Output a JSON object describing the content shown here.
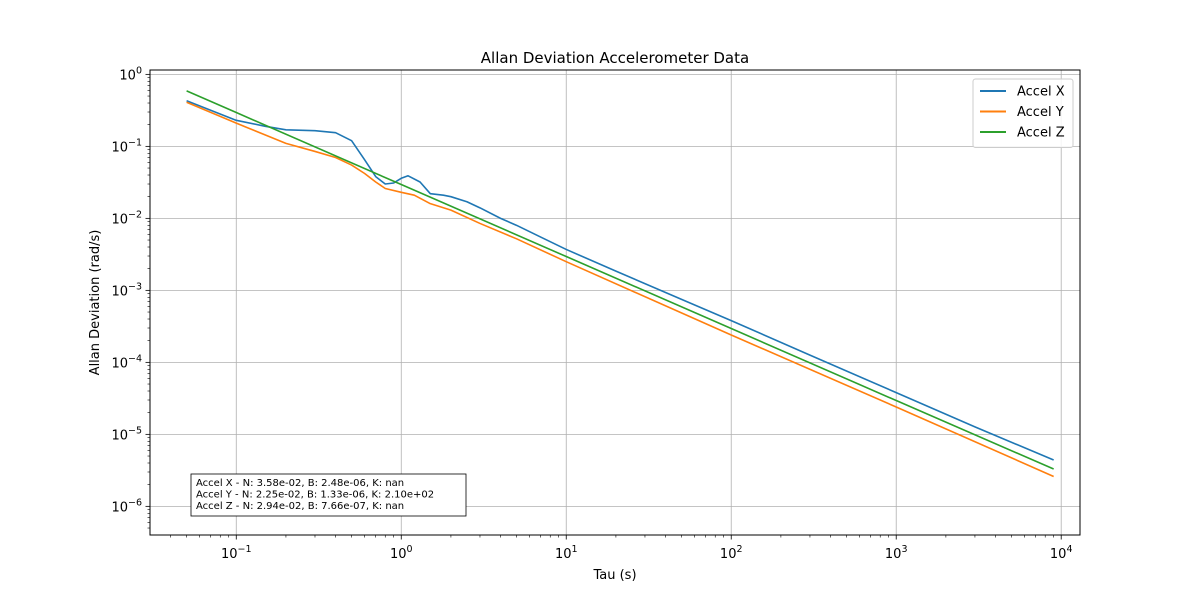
{
  "chart_data": {
    "type": "line",
    "title": "Allan Deviation Accelerometer Data",
    "xlabel": "Tau (s)",
    "ylabel": "Allan Deviation (rad/s)",
    "xscale": "log",
    "yscale": "log",
    "xlim": [
      0.03,
      13000
    ],
    "ylim": [
      4e-07,
      1.15
    ],
    "grid": true,
    "legend_position": "top-right",
    "x_ticks": [
      {
        "value": 0.1,
        "base": "10",
        "exp": "−1"
      },
      {
        "value": 1,
        "base": "10",
        "exp": "0"
      },
      {
        "value": 10,
        "base": "10",
        "exp": "1"
      },
      {
        "value": 100,
        "base": "10",
        "exp": "2"
      },
      {
        "value": 1000,
        "base": "10",
        "exp": "3"
      },
      {
        "value": 10000,
        "base": "10",
        "exp": "4"
      }
    ],
    "y_ticks": [
      {
        "value": 1e-06,
        "base": "10",
        "exp": "−6"
      },
      {
        "value": 1e-05,
        "base": "10",
        "exp": "−5"
      },
      {
        "value": 0.0001,
        "base": "10",
        "exp": "−4"
      },
      {
        "value": 0.001,
        "base": "10",
        "exp": "−3"
      },
      {
        "value": 0.01,
        "base": "10",
        "exp": "−2"
      },
      {
        "value": 0.1,
        "base": "10",
        "exp": "−1"
      },
      {
        "value": 1,
        "base": "10",
        "exp": "0"
      }
    ],
    "series": [
      {
        "name": "Accel X",
        "color": "#1f77b4",
        "x": [
          0.05,
          0.1,
          0.15,
          0.2,
          0.3,
          0.4,
          0.5,
          0.6,
          0.7,
          0.8,
          0.9,
          1.0,
          1.1,
          1.3,
          1.5,
          1.8,
          2.0,
          2.5,
          3.0,
          4.0,
          5.0,
          7.0,
          10,
          20,
          50,
          100,
          300,
          1000,
          3000,
          9000
        ],
        "y": [
          0.43,
          0.23,
          0.19,
          0.17,
          0.165,
          0.155,
          0.12,
          0.065,
          0.038,
          0.03,
          0.031,
          0.036,
          0.039,
          0.032,
          0.022,
          0.021,
          0.02,
          0.017,
          0.014,
          0.01,
          0.008,
          0.0055,
          0.0037,
          0.00185,
          0.00075,
          0.00038,
          0.000126,
          3.8e-05,
          1.27e-05,
          4.4e-06
        ]
      },
      {
        "name": "Accel Y",
        "color": "#ff7f0e",
        "x": [
          0.05,
          0.1,
          0.2,
          0.3,
          0.4,
          0.5,
          0.6,
          0.7,
          0.8,
          1.0,
          1.2,
          1.5,
          2.0,
          3.0,
          5.0,
          10,
          100,
          1000,
          9000
        ],
        "y": [
          0.41,
          0.21,
          0.11,
          0.085,
          0.07,
          0.055,
          0.042,
          0.032,
          0.026,
          0.023,
          0.021,
          0.016,
          0.013,
          0.0085,
          0.0052,
          0.0025,
          0.00024,
          2.4e-05,
          2.6e-06
        ]
      },
      {
        "name": "Accel Z",
        "color": "#2ca02c",
        "x": [
          0.05,
          0.1,
          1.0,
          10,
          100,
          1000,
          9000
        ],
        "y": [
          0.59,
          0.295,
          0.0295,
          0.00295,
          0.000295,
          2.95e-05,
          3.3e-06
        ]
      }
    ],
    "annotation": [
      "Accel X - N: 3.58e-02, B: 2.48e-06, K: nan",
      "Accel Y - N: 2.25e-02, B: 1.33e-06, K: 2.10e+02",
      "Accel Z - N: 2.94e-02, B: 7.66e-07, K: nan"
    ]
  }
}
